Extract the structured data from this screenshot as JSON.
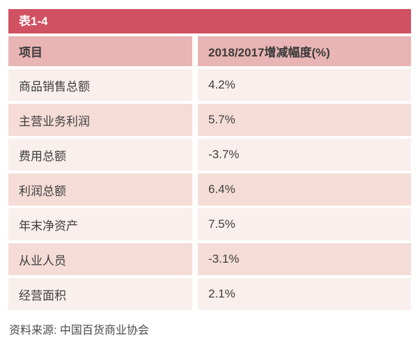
{
  "table": {
    "title": "表1-4",
    "columns": [
      "项目",
      "2018/2017增减幅度(%)"
    ],
    "rows": [
      {
        "label": "商品销售总额",
        "value": "4.2%"
      },
      {
        "label": "主营业务利润",
        "value": "5.7%"
      },
      {
        "label": "费用总额",
        "value": "-3.7%"
      },
      {
        "label": "利润总额",
        "value": "6.4%"
      },
      {
        "label": "年末净资产",
        "value": "7.5%"
      },
      {
        "label": "从业人员",
        "value": "-3.1%"
      },
      {
        "label": "经营面积",
        "value": "2.1%"
      }
    ]
  },
  "source": {
    "text": "资料来源: 中国百货商业协会"
  },
  "colors": {
    "title_bar_bg": "#d05162",
    "title_bar_text": "#ffffff",
    "header_bg": "#e9b4b4",
    "row_light_bg": "#f9efec",
    "row_dark_bg": "#f5dcd7",
    "cell_text": "#3e3e3e",
    "source_text": "#4a4a4a"
  },
  "chart_data": {
    "type": "table",
    "title": "表1-4",
    "columns": [
      "项目",
      "2018/2017增减幅度(%)"
    ],
    "categories": [
      "商品销售总额",
      "主营业务利润",
      "费用总额",
      "利润总额",
      "年末净资产",
      "从业人员",
      "经营面积"
    ],
    "values": [
      4.2,
      5.7,
      -3.7,
      6.4,
      7.5,
      -3.1,
      2.1
    ],
    "value_unit": "%",
    "source": "资料来源: 中国百货商业协会"
  }
}
